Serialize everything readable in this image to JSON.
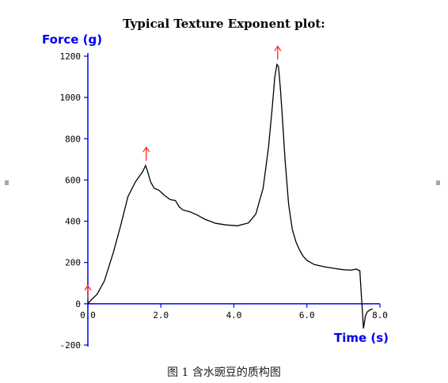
{
  "chart_data": {
    "type": "line",
    "title": "Typical Texture Exponent plot:",
    "ylabel": "Force (g)",
    "xlabel": "Time  (s)",
    "xlim": [
      0,
      8
    ],
    "ylim": [
      -200,
      1200
    ],
    "xticks": [
      0,
      2,
      4,
      6,
      8
    ],
    "xtick_labels": [
      "0.0",
      "2.0",
      "4.0",
      "6.0",
      "8.0"
    ],
    "yticks": [
      -200,
      0,
      200,
      400,
      600,
      800,
      1000,
      1200
    ],
    "ytick_labels": [
      "-200",
      "0",
      "200",
      "400",
      "600",
      "800",
      "1000",
      "1200"
    ],
    "series": [
      {
        "x": [
          0,
          0.1,
          0.25,
          0.45,
          0.7,
          0.9,
          1.1,
          1.3,
          1.5,
          1.58,
          1.63,
          1.72,
          1.82,
          1.95,
          2.1,
          2.25,
          2.4,
          2.5,
          2.6,
          2.8,
          3.0,
          3.2,
          3.5,
          3.8,
          4.1,
          4.4,
          4.6,
          4.8,
          4.95,
          5.05,
          5.12,
          5.18,
          5.22,
          5.27,
          5.33,
          5.4,
          5.5,
          5.6,
          5.7,
          5.8,
          5.9,
          6.0,
          6.2,
          6.5,
          6.8,
          7.0,
          7.2,
          7.35,
          7.45,
          7.5,
          7.55,
          7.6,
          7.65,
          7.72,
          7.8
        ],
        "y": [
          0,
          20,
          45,
          110,
          250,
          380,
          520,
          590,
          640,
          670,
          645,
          590,
          560,
          550,
          525,
          505,
          500,
          470,
          455,
          445,
          430,
          410,
          390,
          382,
          378,
          392,
          435,
          560,
          760,
          950,
          1100,
          1160,
          1150,
          1050,
          900,
          700,
          480,
          360,
          300,
          260,
          230,
          210,
          190,
          178,
          170,
          165,
          163,
          168,
          160,
          20,
          -120,
          -60,
          -40,
          -30,
          -25
        ]
      }
    ],
    "markers": [
      {
        "x": 1.6,
        "y": 670,
        "symbol": "↑"
      },
      {
        "x": 5.2,
        "y": 1160,
        "symbol": "↑"
      },
      {
        "x": 0,
        "y": 0,
        "symbol": "↑"
      }
    ],
    "grid": false,
    "legend": "none",
    "colors": {
      "axis": "#0000ee",
      "axis_label": "#0000ee",
      "curve": "#000000",
      "marker": "#ff2a2a"
    }
  },
  "caption": "图 1  含水豌豆的质构图"
}
